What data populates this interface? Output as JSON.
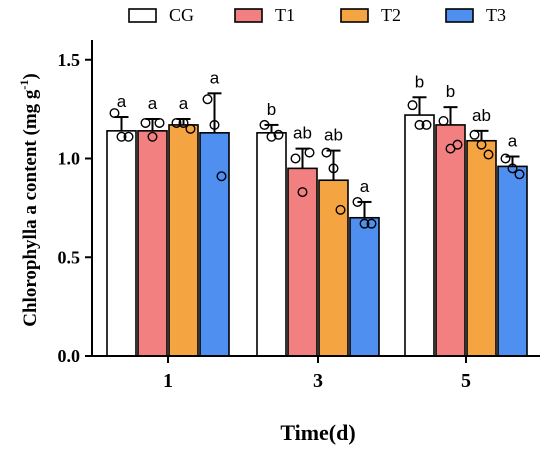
{
  "chart_data": {
    "type": "bar",
    "categories": [
      "1",
      "3",
      "5"
    ],
    "xlabel": "Time(d)",
    "ylabel_main": "Chlorophylla a content (mg g",
    "ylabel_sup": "-1",
    "ylabel_close": ")",
    "ylim": [
      0,
      1.6
    ],
    "yticks": [
      "0.0",
      "0.5",
      "1.0",
      "1.5"
    ],
    "ytick_values": [
      0,
      0.5,
      1.0,
      1.5
    ],
    "grid": false,
    "legend_position": "top",
    "series": [
      {
        "name": "CG",
        "color": "#ffffff",
        "values": [
          1.14,
          1.13,
          1.22
        ],
        "errors": [
          0.07,
          0.04,
          0.09
        ],
        "points": [
          [
            1.23,
            1.11,
            1.11
          ],
          [
            1.17,
            1.11,
            1.12
          ],
          [
            1.27,
            1.17,
            1.17
          ]
        ],
        "letters": [
          "a",
          "b",
          "b"
        ]
      },
      {
        "name": "T1",
        "color": "#f28080",
        "values": [
          1.14,
          0.95,
          1.17
        ],
        "errors": [
          0.06,
          0.1,
          0.09
        ],
        "points": [
          [
            1.18,
            1.11,
            1.18
          ],
          [
            1.0,
            0.83,
            1.03
          ],
          [
            1.19,
            1.05,
            1.07
          ]
        ],
        "letters": [
          "a",
          "ab",
          "b"
        ]
      },
      {
        "name": "T2",
        "color": "#f5a442",
        "values": [
          1.17,
          0.89,
          1.09
        ],
        "errors": [
          0.03,
          0.15,
          0.05
        ],
        "points": [
          [
            1.18,
            1.18,
            1.15
          ],
          [
            1.03,
            0.95,
            0.74
          ],
          [
            1.12,
            1.07,
            1.02
          ]
        ],
        "letters": [
          "a",
          "ab",
          "ab"
        ]
      },
      {
        "name": "T3",
        "color": "#4f8ff0",
        "values": [
          1.13,
          0.7,
          0.96
        ],
        "errors": [
          0.2,
          0.08,
          0.05
        ],
        "points": [
          [
            1.3,
            1.17,
            0.91
          ],
          [
            0.78,
            0.67,
            0.67
          ],
          [
            1.0,
            0.95,
            0.92
          ]
        ],
        "letters": [
          "a",
          "a",
          "a"
        ]
      }
    ]
  }
}
